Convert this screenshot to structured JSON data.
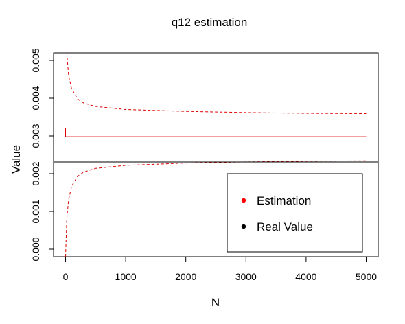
{
  "chart_data": {
    "type": "line",
    "title": "q12 estimation",
    "xlabel": "N",
    "ylabel": "Value",
    "xlim": [
      -200,
      5200
    ],
    "ylim": [
      -0.0002,
      0.0052
    ],
    "x_ticks": [
      0,
      1000,
      2000,
      3000,
      4000,
      5000
    ],
    "x_tick_labels": [
      "0",
      "1000",
      "2000",
      "3000",
      "4000",
      "5000"
    ],
    "y_ticks": [
      0.0,
      0.001,
      0.002,
      0.003,
      0.004,
      0.005
    ],
    "y_tick_labels": [
      "0.000",
      "0.001",
      "0.002",
      "0.003",
      "0.004",
      "0.005"
    ],
    "reference_line": {
      "y": 0.00231,
      "color": "#000000"
    },
    "series": [
      {
        "style": "solid",
        "color": "#dd0000",
        "x": [
          0,
          0,
          20,
          5000
        ],
        "y": [
          0.0032,
          0.00298,
          0.00298,
          0.00298
        ]
      },
      {
        "style": "dashed",
        "color": "#dd0000",
        "x": [
          20,
          50,
          100,
          200,
          300,
          500,
          1000,
          2000,
          3000,
          4000,
          5000
        ],
        "y": [
          0.0052,
          0.0046,
          0.00425,
          0.00398,
          0.00387,
          0.00378,
          0.0037,
          0.00365,
          0.00362,
          0.0036,
          0.00359
        ]
      },
      {
        "style": "dashed",
        "color": "#dd0000",
        "x": [
          0,
          20,
          50,
          100,
          200,
          300,
          500,
          1000,
          2000,
          3000,
          4000,
          5000
        ],
        "y": [
          -0.0002,
          0.0008,
          0.0013,
          0.00167,
          0.00193,
          0.00204,
          0.00214,
          0.00222,
          0.00228,
          0.00231,
          0.00233,
          0.00234
        ]
      }
    ],
    "legend": {
      "placement": "bottom-right",
      "items": [
        {
          "label": "Estimation",
          "color": "#ff0000"
        },
        {
          "label": "Real Value",
          "color": "#000000"
        }
      ]
    },
    "grid": false
  }
}
